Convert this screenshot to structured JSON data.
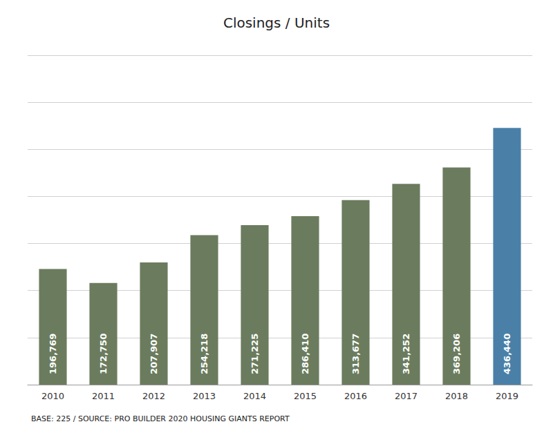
{
  "chart_data": {
    "type": "bar",
    "title": "Closings / Units",
    "annotations": [
      "BASE: 225 / SOURCE: PRO BUILDER 2020 HOUSING GIANTS REPORT"
    ],
    "categories": [
      "2010",
      "2011",
      "2012",
      "2013",
      "2014",
      "2015",
      "2016",
      "2017",
      "2018",
      "2019"
    ],
    "values": [
      196769,
      172750,
      207907,
      254218,
      271225,
      286410,
      313677,
      341252,
      369206,
      436440
    ],
    "value_labels": [
      "196,769",
      "172,750",
      "207,907",
      "254,218",
      "271,225",
      "286,410",
      "313,677",
      "341,252",
      "369,206",
      "436,440"
    ],
    "colors": [
      "#6b7c5e",
      "#6b7c5e",
      "#6b7c5e",
      "#6b7c5e",
      "#6b7c5e",
      "#6b7c5e",
      "#6b7c5e",
      "#6b7c5e",
      "#6b7c5e",
      "#4a80a8"
    ],
    "ylim": [
      0,
      560000
    ],
    "yticks": [
      0,
      80000,
      160000,
      240000,
      320000,
      400000,
      480000,
      560000
    ],
    "grid": true,
    "data_labels": true,
    "tick_labels": "x"
  }
}
